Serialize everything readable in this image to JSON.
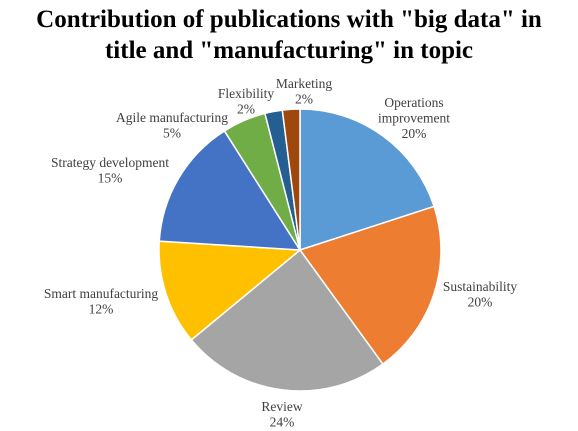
{
  "chart_data": {
    "type": "pie",
    "title": "Contribution of publications with \"big data\" in title and \"manufacturing\" in topic",
    "title_lines": [
      "Contribution of publications with \"big data\" in",
      "title and \"manufacturing\" in topic"
    ],
    "slices": [
      {
        "label": "Operations improvement",
        "label_lines": [
          "Operations",
          "improvement"
        ],
        "value_text": "20%",
        "value": 20,
        "color": "#5B9BD5"
      },
      {
        "label": "Sustainability",
        "label_lines": [
          "Sustainability"
        ],
        "value_text": "20%",
        "value": 20,
        "color": "#ED7D31"
      },
      {
        "label": "Review",
        "label_lines": [
          "Review"
        ],
        "value_text": "24%",
        "value": 24,
        "color": "#A5A5A5"
      },
      {
        "label": "Smart manufacturing",
        "label_lines": [
          "Smart manufacturing"
        ],
        "value_text": "12%",
        "value": 12,
        "color": "#FFC000"
      },
      {
        "label": "Strategy development",
        "label_lines": [
          "Strategy development"
        ],
        "value_text": "15%",
        "value": 15,
        "color": "#4472C4"
      },
      {
        "label": "Agile manufacturing",
        "label_lines": [
          "Agile manufacturing"
        ],
        "value_text": "5%",
        "value": 5,
        "color": "#70AD47"
      },
      {
        "label": "Flexibility",
        "label_lines": [
          "Flexibility"
        ],
        "value_text": "2%",
        "value": 2,
        "color": "#255E91"
      },
      {
        "label": "Marketing",
        "label_lines": [
          "Marketing"
        ],
        "value_text": "2%",
        "value": 2,
        "color": "#9E480E"
      }
    ],
    "legend": "none",
    "start_angle": "12 o'clock, clockwise"
  }
}
